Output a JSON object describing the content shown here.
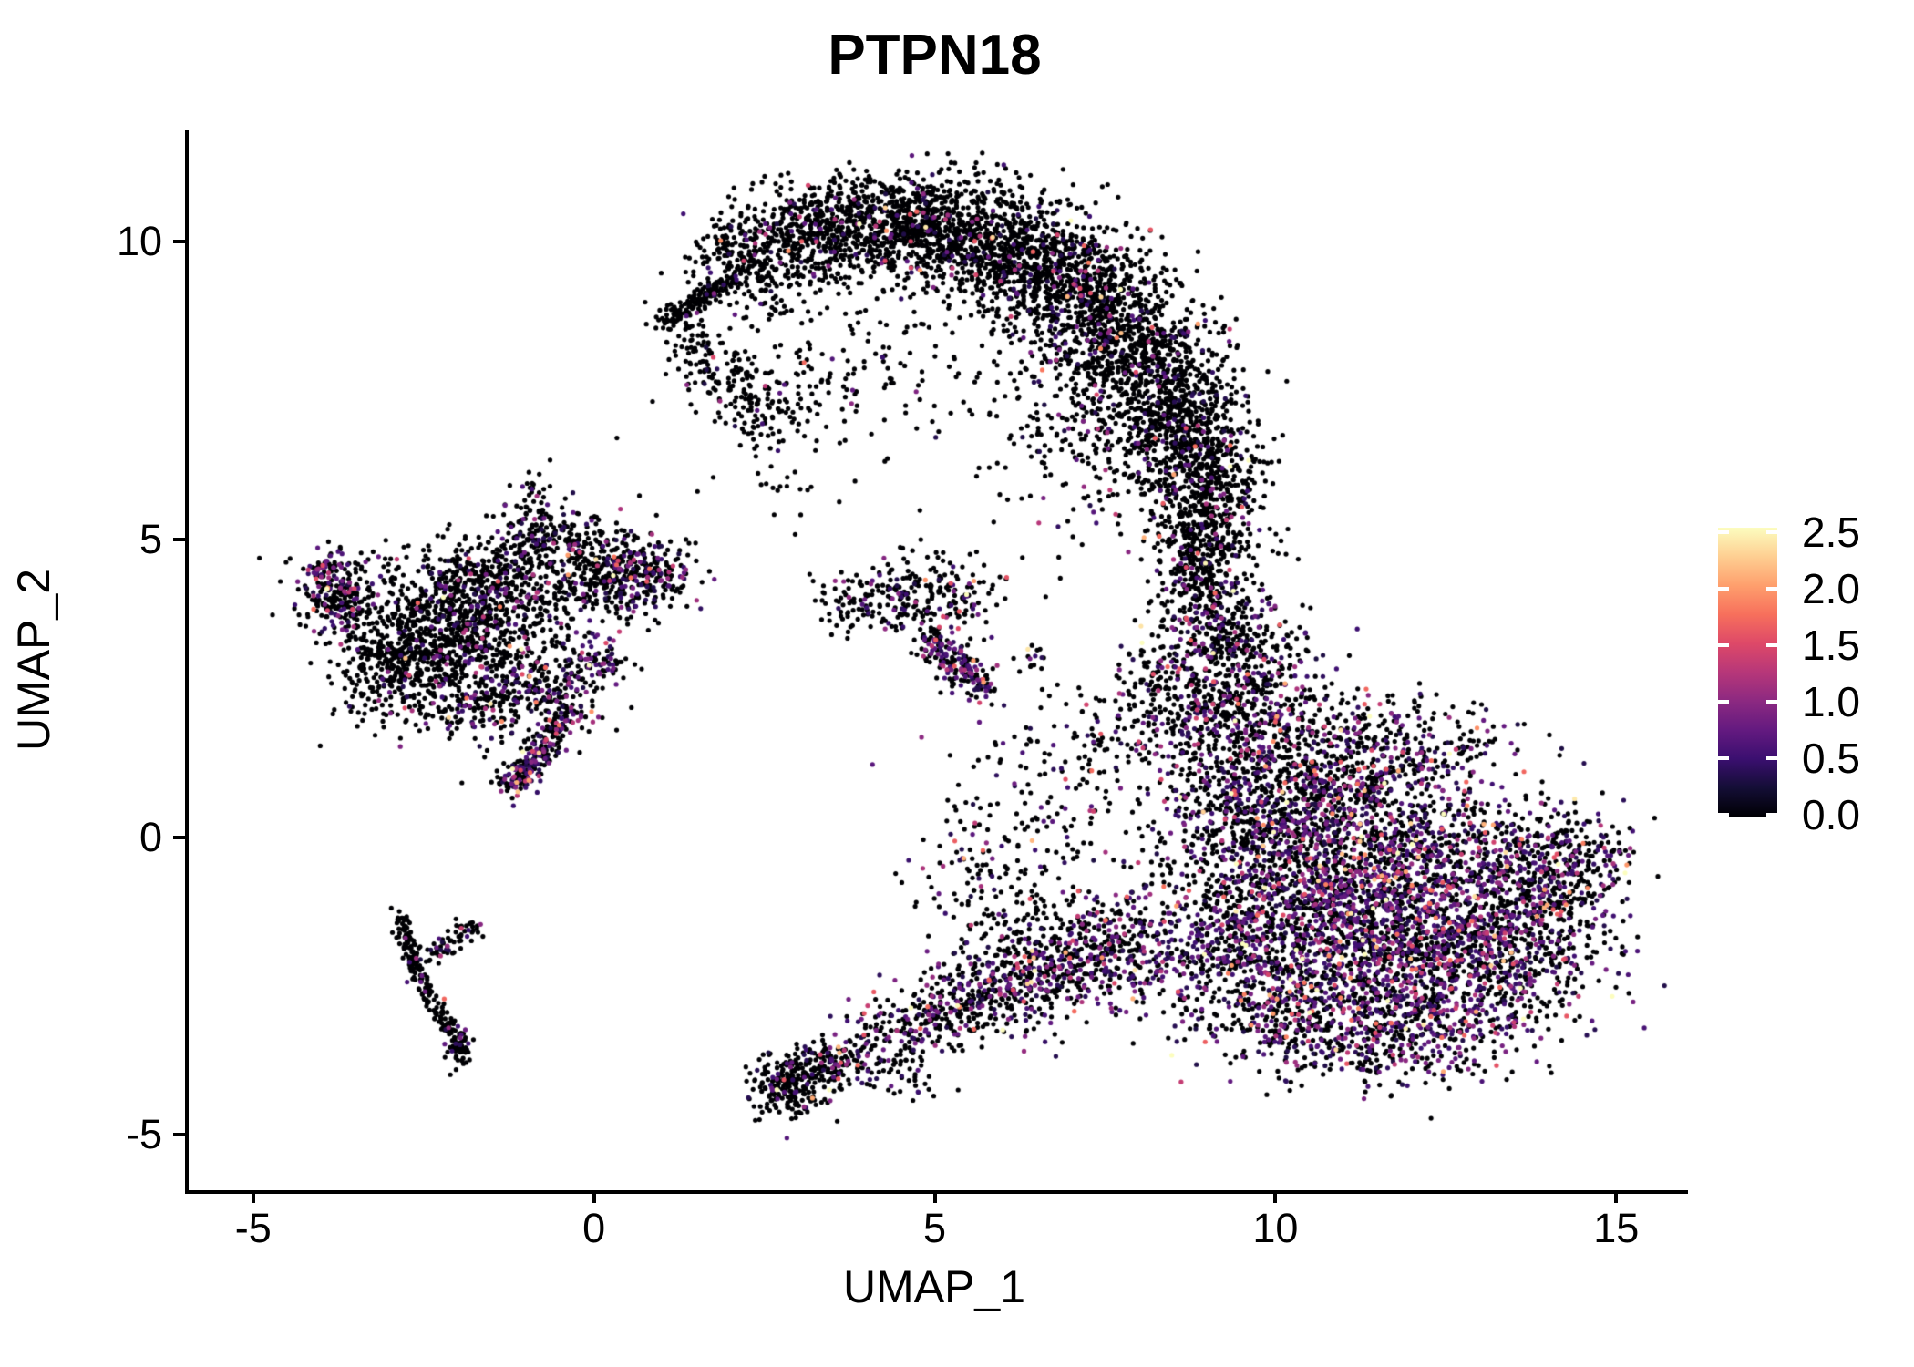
{
  "title": "PTPN18",
  "axes": {
    "x": {
      "label": "UMAP_1",
      "ticks": [
        {
          "value": -5,
          "label": "-5"
        },
        {
          "value": 0,
          "label": "0"
        },
        {
          "value": 5,
          "label": "5"
        },
        {
          "value": 10,
          "label": "10"
        },
        {
          "value": 15,
          "label": "15"
        }
      ]
    },
    "y": {
      "label": "UMAP_2",
      "ticks": [
        {
          "value": -5,
          "label": "-5"
        },
        {
          "value": 0,
          "label": "0"
        },
        {
          "value": 5,
          "label": "5"
        },
        {
          "value": 10,
          "label": "10"
        }
      ]
    }
  },
  "legend": {
    "min": 0.0,
    "max": 2.55,
    "ticks": [
      {
        "value": 0.0,
        "label": "0.0"
      },
      {
        "value": 0.5,
        "label": "0.5"
      },
      {
        "value": 1.0,
        "label": "1.0"
      },
      {
        "value": 1.5,
        "label": "1.5"
      },
      {
        "value": 2.0,
        "label": "2.0"
      },
      {
        "value": 2.5,
        "label": "2.5"
      }
    ]
  },
  "colors": {
    "background": "#ffffff",
    "axis": "#000000",
    "text": "#000000",
    "zero_expression": "#000004",
    "magma_stops": [
      {
        "t": 0.0,
        "hex": "#000004"
      },
      {
        "t": 0.1,
        "hex": "#140e36"
      },
      {
        "t": 0.2,
        "hex": "#3b0f70"
      },
      {
        "t": 0.3,
        "hex": "#641a80"
      },
      {
        "t": 0.4,
        "hex": "#8c2981"
      },
      {
        "t": 0.5,
        "hex": "#b73779"
      },
      {
        "t": 0.6,
        "hex": "#de4968"
      },
      {
        "t": 0.7,
        "hex": "#f7705c"
      },
      {
        "t": 0.8,
        "hex": "#fe9f6d"
      },
      {
        "t": 0.9,
        "hex": "#fecf92"
      },
      {
        "t": 1.0,
        "hex": "#fcfdbf"
      }
    ]
  },
  "chart_data": {
    "type": "scatter",
    "title": "PTPN18",
    "xlabel": "UMAP_1",
    "ylabel": "UMAP_2",
    "xlim": [
      -6,
      16
    ],
    "ylim": [
      -5.93,
      11.87
    ],
    "grid": false,
    "legend_position": "right",
    "color_scale": {
      "name": "magma",
      "domain": [
        0,
        2.55
      ],
      "legend_ticks": [
        0,
        0.5,
        1,
        1.5,
        2,
        2.5
      ]
    },
    "point_radius_px": 2.6,
    "seed": 42,
    "expression_model": {
      "expressed_base": 0.3,
      "expressed_exp_mean": 0.5,
      "max": 2.55
    },
    "clusters": [
      {
        "id": "arc-tip-streak",
        "shape": "line",
        "x1": 1.0,
        "y1": 8.65,
        "x2": 2.0,
        "y2": 9.35,
        "jitter": 0.09,
        "n": 150,
        "expressed_frac": 0.05
      },
      {
        "id": "arc-2",
        "shape": "gauss",
        "x": 2.3,
        "y": 9.7,
        "sx": 0.45,
        "sy": 0.45,
        "n": 260,
        "expressed_frac": 0.07
      },
      {
        "id": "arc-3",
        "shape": "gauss",
        "x": 3.1,
        "y": 10.1,
        "sx": 0.5,
        "sy": 0.4,
        "n": 330,
        "expressed_frac": 0.07
      },
      {
        "id": "arc-4",
        "shape": "gauss",
        "x": 4.0,
        "y": 10.3,
        "sx": 0.55,
        "sy": 0.4,
        "n": 380,
        "expressed_frac": 0.08
      },
      {
        "id": "arc-5",
        "shape": "gauss",
        "x": 4.9,
        "y": 10.25,
        "sx": 0.55,
        "sy": 0.45,
        "n": 420,
        "expressed_frac": 0.08
      },
      {
        "id": "arc-6",
        "shape": "gauss",
        "x": 5.8,
        "y": 10.0,
        "sx": 0.55,
        "sy": 0.5,
        "n": 450,
        "expressed_frac": 0.09
      },
      {
        "id": "arc-7",
        "shape": "gauss",
        "x": 6.6,
        "y": 9.6,
        "sx": 0.55,
        "sy": 0.55,
        "n": 470,
        "expressed_frac": 0.1
      },
      {
        "id": "arc-8",
        "shape": "gauss",
        "x": 7.3,
        "y": 9.0,
        "sx": 0.55,
        "sy": 0.6,
        "n": 470,
        "expressed_frac": 0.1
      },
      {
        "id": "arc-9",
        "shape": "gauss",
        "x": 7.9,
        "y": 8.2,
        "sx": 0.55,
        "sy": 0.65,
        "n": 450,
        "expressed_frac": 0.11
      },
      {
        "id": "arc-10",
        "shape": "gauss",
        "x": 8.4,
        "y": 7.3,
        "sx": 0.5,
        "sy": 0.65,
        "n": 420,
        "expressed_frac": 0.11
      },
      {
        "id": "arc-11",
        "shape": "gauss",
        "x": 8.8,
        "y": 6.4,
        "sx": 0.45,
        "sy": 0.6,
        "n": 370,
        "expressed_frac": 0.12
      },
      {
        "id": "arc-12",
        "shape": "gauss",
        "x": 9.0,
        "y": 5.5,
        "sx": 0.4,
        "sy": 0.55,
        "n": 300,
        "expressed_frac": 0.12
      },
      {
        "id": "arc-neck",
        "shape": "gauss",
        "x": 8.9,
        "y": 4.6,
        "sx": 0.35,
        "sy": 0.5,
        "n": 220,
        "expressed_frac": 0.14
      },
      {
        "id": "arc-hook",
        "shape": "line",
        "x1": 1.3,
        "y1": 8.4,
        "x2": 2.7,
        "y2": 6.9,
        "jitter": 0.25,
        "n": 180,
        "expressed_frac": 0.07
      },
      {
        "id": "arc-interior-sparse",
        "shape": "gauss",
        "x": 4.2,
        "y": 8.2,
        "sx": 1.3,
        "sy": 0.9,
        "n": 160,
        "expressed_frac": 0.07
      },
      {
        "id": "arc-interior-sparse2",
        "shape": "gauss",
        "x": 2.9,
        "y": 7.6,
        "sx": 0.8,
        "sy": 0.6,
        "n": 80,
        "expressed_frac": 0.06
      },
      {
        "id": "arc-right-bulge",
        "shape": "gauss",
        "x": 7.6,
        "y": 7.0,
        "sx": 0.9,
        "sy": 1.0,
        "n": 350,
        "expressed_frac": 0.12
      },
      {
        "id": "mid-1",
        "shape": "gauss",
        "x": 9.1,
        "y": 3.7,
        "sx": 0.45,
        "sy": 0.55,
        "n": 260,
        "expressed_frac": 0.22
      },
      {
        "id": "mid-2",
        "shape": "gauss",
        "x": 9.6,
        "y": 2.7,
        "sx": 0.6,
        "sy": 0.65,
        "n": 340,
        "expressed_frac": 0.28
      },
      {
        "id": "mid-3",
        "shape": "gauss",
        "x": 9.3,
        "y": 1.6,
        "sx": 0.65,
        "sy": 0.65,
        "n": 360,
        "expressed_frac": 0.3
      },
      {
        "id": "mid-spur",
        "shape": "gauss",
        "x": 8.3,
        "y": 2.4,
        "sx": 0.4,
        "sy": 0.5,
        "n": 140,
        "expressed_frac": 0.22
      },
      {
        "id": "mid-left-arm",
        "shape": "gauss",
        "x": 7.2,
        "y": 1.2,
        "sx": 0.7,
        "sy": 0.9,
        "n": 150,
        "expressed_frac": 0.22
      },
      {
        "id": "blob-upper-1",
        "shape": "gauss",
        "x": 9.8,
        "y": 0.3,
        "sx": 0.75,
        "sy": 0.75,
        "n": 450,
        "expressed_frac": 0.33
      },
      {
        "id": "blob-upper-2",
        "shape": "gauss",
        "x": 10.7,
        "y": 1.0,
        "sx": 0.7,
        "sy": 0.7,
        "n": 400,
        "expressed_frac": 0.3
      },
      {
        "id": "blob-upper-3",
        "shape": "gauss",
        "x": 11.8,
        "y": 1.4,
        "sx": 0.75,
        "sy": 0.5,
        "n": 280,
        "expressed_frac": 0.3
      },
      {
        "id": "blob-core",
        "shape": "gauss",
        "x": 11.3,
        "y": -1.0,
        "sx": 1.35,
        "sy": 1.0,
        "n": 2300,
        "expressed_frac": 0.45
      },
      {
        "id": "blob-se",
        "shape": "gauss",
        "x": 12.7,
        "y": -2.1,
        "sx": 0.9,
        "sy": 0.75,
        "n": 750,
        "expressed_frac": 0.45
      },
      {
        "id": "blob-e",
        "shape": "gauss",
        "x": 13.8,
        "y": -1.1,
        "sx": 0.55,
        "sy": 0.8,
        "n": 380,
        "expressed_frac": 0.42
      },
      {
        "id": "blob-ne-arm",
        "shape": "gauss",
        "x": 14.4,
        "y": -0.4,
        "sx": 0.4,
        "sy": 0.45,
        "n": 150,
        "expressed_frac": 0.4
      },
      {
        "id": "blob-sw",
        "shape": "gauss",
        "x": 10.3,
        "y": -2.9,
        "sx": 0.75,
        "sy": 0.55,
        "n": 400,
        "expressed_frac": 0.42
      },
      {
        "id": "blob-s",
        "shape": "gauss",
        "x": 11.9,
        "y": -3.3,
        "sx": 0.7,
        "sy": 0.45,
        "n": 280,
        "expressed_frac": 0.42
      },
      {
        "id": "blob-w",
        "shape": "gauss",
        "x": 9.4,
        "y": -1.7,
        "sx": 0.6,
        "sy": 0.7,
        "n": 330,
        "expressed_frac": 0.4
      },
      {
        "id": "blob-far-east-dots",
        "shape": "gauss",
        "x": 15.0,
        "y": -0.2,
        "sx": 0.18,
        "sy": 0.25,
        "n": 14,
        "expressed_frac": 0.35
      },
      {
        "id": "tendril-1",
        "shape": "gauss",
        "x": 4.3,
        "y": -3.35,
        "sx": 0.4,
        "sy": 0.3,
        "n": 120,
        "expressed_frac": 0.3
      },
      {
        "id": "tendril-2",
        "shape": "gauss",
        "x": 5.1,
        "y": -2.9,
        "sx": 0.42,
        "sy": 0.35,
        "n": 160,
        "expressed_frac": 0.33
      },
      {
        "id": "tendril-3",
        "shape": "gauss",
        "x": 5.9,
        "y": -2.5,
        "sx": 0.45,
        "sy": 0.4,
        "n": 210,
        "expressed_frac": 0.36
      },
      {
        "id": "tendril-4",
        "shape": "gauss",
        "x": 6.7,
        "y": -2.15,
        "sx": 0.5,
        "sy": 0.42,
        "n": 250,
        "expressed_frac": 0.38
      },
      {
        "id": "tendril-5",
        "shape": "gauss",
        "x": 7.6,
        "y": -1.9,
        "sx": 0.55,
        "sy": 0.45,
        "n": 290,
        "expressed_frac": 0.4
      },
      {
        "id": "tendril-sparse-above",
        "shape": "gauss",
        "x": 6.3,
        "y": -1.1,
        "sx": 0.8,
        "sy": 0.7,
        "n": 120,
        "expressed_frac": 0.25
      },
      {
        "id": "tendril-sparse-col",
        "shape": "gauss",
        "x": 5.6,
        "y": -0.2,
        "sx": 0.5,
        "sy": 0.8,
        "n": 90,
        "expressed_frac": 0.2
      },
      {
        "id": "wedge-sparse-right",
        "shape": "gauss",
        "x": 4.2,
        "y": -4.0,
        "sx": 0.5,
        "sy": 0.25,
        "n": 50,
        "expressed_frac": 0.2
      },
      {
        "id": "wedge-core",
        "shape": "gauss",
        "x": 2.85,
        "y": -4.15,
        "sx": 0.27,
        "sy": 0.27,
        "n": 230,
        "expressed_frac": 0.12
      },
      {
        "id": "wedge-tail",
        "shape": "gauss",
        "x": 3.45,
        "y": -3.8,
        "sx": 0.3,
        "sy": 0.22,
        "n": 100,
        "expressed_frac": 0.25
      },
      {
        "id": "left-lobe",
        "shape": "gauss",
        "x": -3.75,
        "y": 4.05,
        "sx": 0.3,
        "sy": 0.35,
        "n": 230,
        "expressed_frac": 0.28
      },
      {
        "id": "left-lobe-pink-tip",
        "shape": "gauss",
        "x": -3.95,
        "y": 4.45,
        "sx": 0.12,
        "sy": 0.15,
        "n": 50,
        "expressed_frac": 0.5
      },
      {
        "id": "left-lobe-lower",
        "shape": "gauss",
        "x": -2.9,
        "y": 2.9,
        "sx": 0.45,
        "sy": 0.45,
        "n": 340,
        "expressed_frac": 0.1
      },
      {
        "id": "left-central-1",
        "shape": "gauss",
        "x": -2.4,
        "y": 3.5,
        "sx": 0.5,
        "sy": 0.5,
        "n": 380,
        "expressed_frac": 0.12
      },
      {
        "id": "left-central-2",
        "shape": "gauss",
        "x": -1.6,
        "y": 3.6,
        "sx": 0.5,
        "sy": 0.55,
        "n": 320,
        "expressed_frac": 0.14
      },
      {
        "id": "left-bridge",
        "shape": "gauss",
        "x": -2.0,
        "y": 4.5,
        "sx": 0.5,
        "sy": 0.35,
        "n": 130,
        "expressed_frac": 0.12
      },
      {
        "id": "left-upper",
        "shape": "gauss",
        "x": -0.9,
        "y": 4.4,
        "sx": 0.55,
        "sy": 0.5,
        "n": 300,
        "expressed_frac": 0.16
      },
      {
        "id": "left-arm-up",
        "shape": "gauss",
        "x": -0.85,
        "y": 5.35,
        "sx": 0.18,
        "sy": 0.4,
        "n": 90,
        "expressed_frac": 0.18
      },
      {
        "id": "left-upper-right",
        "shape": "gauss",
        "x": 0.0,
        "y": 4.9,
        "sx": 0.45,
        "sy": 0.4,
        "n": 150,
        "expressed_frac": 0.22
      },
      {
        "id": "left-right",
        "shape": "gauss",
        "x": 0.3,
        "y": 4.3,
        "sx": 0.45,
        "sy": 0.35,
        "n": 200,
        "expressed_frac": 0.25
      },
      {
        "id": "left-right-tip",
        "shape": "gauss",
        "x": 0.85,
        "y": 4.45,
        "sx": 0.35,
        "sy": 0.25,
        "n": 150,
        "expressed_frac": 0.3
      },
      {
        "id": "left-lower",
        "shape": "gauss",
        "x": -0.9,
        "y": 2.6,
        "sx": 0.55,
        "sy": 0.45,
        "n": 260,
        "expressed_frac": 0.25
      },
      {
        "id": "left-lower-west",
        "shape": "gauss",
        "x": -1.8,
        "y": 2.3,
        "sx": 0.4,
        "sy": 0.4,
        "n": 140,
        "expressed_frac": 0.18
      },
      {
        "id": "left-purple-streak",
        "shape": "line",
        "x1": -0.3,
        "y1": 2.15,
        "x2": -1.2,
        "y2": 0.9,
        "jitter": 0.13,
        "n": 190,
        "expressed_frac": 0.5
      },
      {
        "id": "left-purple-streak-end",
        "shape": "gauss",
        "x": -1.1,
        "y": 1.0,
        "sx": 0.18,
        "sy": 0.16,
        "n": 60,
        "expressed_frac": 0.55
      },
      {
        "id": "left-purple-dot-east",
        "shape": "gauss",
        "x": 0.15,
        "y": 2.9,
        "sx": 0.25,
        "sy": 0.22,
        "n": 70,
        "expressed_frac": 0.5
      },
      {
        "id": "center-1",
        "shape": "gauss",
        "x": 3.8,
        "y": 3.95,
        "sx": 0.32,
        "sy": 0.25,
        "n": 70,
        "expressed_frac": 0.15
      },
      {
        "id": "center-2",
        "shape": "gauss",
        "x": 4.6,
        "y": 4.0,
        "sx": 0.4,
        "sy": 0.35,
        "n": 140,
        "expressed_frac": 0.22
      },
      {
        "id": "center-purple-streak",
        "shape": "line",
        "x1": 4.9,
        "y1": 3.4,
        "x2": 5.75,
        "y2": 2.45,
        "jitter": 0.15,
        "n": 200,
        "expressed_frac": 0.5
      },
      {
        "id": "center-top",
        "shape": "gauss",
        "x": 5.35,
        "y": 4.15,
        "sx": 0.3,
        "sy": 0.28,
        "n": 80,
        "expressed_frac": 0.22
      },
      {
        "id": "center-east-dots",
        "shape": "gauss",
        "x": 6.5,
        "y": 3.0,
        "sx": 0.2,
        "sy": 0.12,
        "n": 14,
        "expressed_frac": 0.2
      },
      {
        "id": "sparse-above-left",
        "shape": "gauss",
        "x": 2.7,
        "y": 5.8,
        "sx": 0.45,
        "sy": 0.35,
        "n": 22,
        "expressed_frac": 0.1
      },
      {
        "id": "v-left-branch",
        "shape": "line",
        "x1": -2.85,
        "y1": -1.3,
        "x2": -2.6,
        "y2": -2.3,
        "jitter": 0.07,
        "n": 95,
        "expressed_frac": 0.07
      },
      {
        "id": "v-main-tail",
        "shape": "line",
        "x1": -2.6,
        "y1": -2.3,
        "x2": -1.95,
        "y2": -3.55,
        "jitter": 0.07,
        "n": 115,
        "expressed_frac": 0.07
      },
      {
        "id": "v-right-branch",
        "shape": "line",
        "x1": -2.45,
        "y1": -2.05,
        "x2": -1.8,
        "y2": -1.5,
        "jitter": 0.09,
        "n": 65,
        "expressed_frac": 0.12
      },
      {
        "id": "v-end-blob",
        "shape": "gauss",
        "x": -1.95,
        "y": -3.6,
        "sx": 0.1,
        "sy": 0.12,
        "n": 35,
        "expressed_frac": 0.1
      }
    ]
  }
}
